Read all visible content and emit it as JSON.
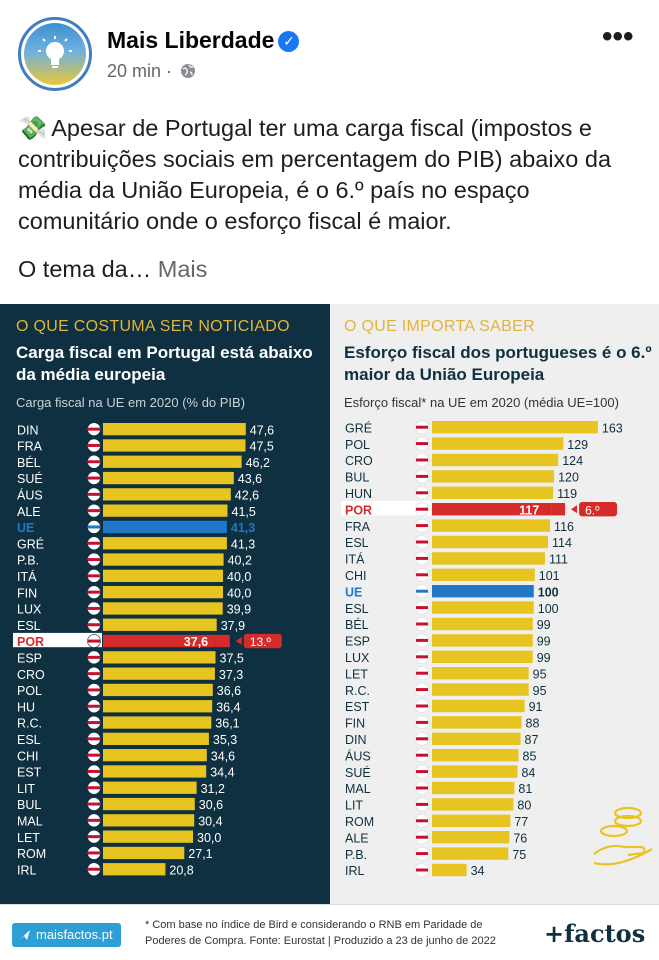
{
  "post": {
    "page_name": "Mais Liberdade",
    "time": "20 min ·",
    "text_emoji": "💸",
    "text": "Apesar de Portugal ter uma carga fiscal (impostos e contribuições sociais em percentagem do PIB) abaixo da média da União Europeia, é o 6.º país no espaço comunitário onde o esforço fiscal é maior.",
    "text_tail": "O tema da…",
    "more_label": "Mais"
  },
  "left_panel": {
    "kicker": "O QUE COSTUMA SER NOTICIADO",
    "headline": "Carga fiscal em Portugal está abaixo da média europeia",
    "subtitle": "Carga fiscal na UE em 2020 (% do PIB)"
  },
  "right_panel": {
    "kicker": "O QUE IMPORTA SABER",
    "headline": "Esforço fiscal dos portugueses é o 6.º maior da União Europeia",
    "subtitle": "Esforço fiscal* na UE em 2020 (média UE=100)"
  },
  "footer": {
    "site": "maisfactos.pt",
    "footnote_1": "* Com base no índice de Bird e considerando o RNB em Paridade de",
    "footnote_2": "Poderes de Compra. Fonte: Eurostat | Produzido a 23 de junho de 2022",
    "brand": "+factos"
  },
  "colors": {
    "bar": "#e8c420",
    "highlight": "#d62b2b",
    "eu": "#1f78c8",
    "dark_panel": "#0f3040",
    "kicker": "#e2b43a"
  },
  "chart_data": [
    {
      "type": "bar",
      "orientation": "horizontal",
      "title": "Carga fiscal em Portugal está abaixo da média europeia",
      "subtitle": "Carga fiscal na UE em 2020 (% do PIB)",
      "categories": [
        "DIN",
        "FRA",
        "BÉL",
        "SUÉ",
        "ÁUS",
        "ALE",
        "UE",
        "GRÉ",
        "P.B.",
        "ITÁ",
        "FIN",
        "LUX",
        "ESL",
        "POR",
        "ESP",
        "CRO",
        "POL",
        "HU",
        "R.C.",
        "ESL",
        "CHI",
        "EST",
        "LIT",
        "BUL",
        "MAL",
        "LET",
        "ROM",
        "IRL"
      ],
      "values": [
        47.6,
        47.5,
        46.2,
        43.6,
        42.6,
        41.5,
        41.3,
        41.3,
        40.2,
        40.0,
        40.0,
        39.9,
        37.9,
        37.6,
        37.5,
        37.3,
        36.6,
        36.4,
        36.1,
        35.3,
        34.6,
        34.4,
        31.2,
        30.6,
        30.4,
        30.0,
        27.1,
        20.8
      ],
      "labels": [
        "47,6",
        "47,5",
        "46,2",
        "43,6",
        "42,6",
        "41,5",
        "41,3",
        "41,3",
        "40,2",
        "40,0",
        "40,0",
        "39,9",
        "37,9",
        "37,6",
        "37,5",
        "37,3",
        "36,6",
        "36,4",
        "36,1",
        "35,3",
        "34,6",
        "34,4",
        "31,2",
        "30,6",
        "30,4",
        "30,0",
        "27,1",
        "20,8"
      ],
      "highlight": "POR",
      "eu_category": "UE",
      "rank_badge": "13.º",
      "xlim": [
        0,
        50
      ]
    },
    {
      "type": "bar",
      "orientation": "horizontal",
      "title": "Esforço fiscal dos portugueses é o 6.º maior da União Europeia",
      "subtitle": "Esforço fiscal* na UE em 2020 (média UE=100)",
      "categories": [
        "GRÉ",
        "POL",
        "CRO",
        "BUL",
        "HUN",
        "POR",
        "FRA",
        "ESL",
        "ITÁ",
        "CHI",
        "UE",
        "ESL",
        "BÉL",
        "ESP",
        "LUX",
        "LET",
        "R.C.",
        "EST",
        "FIN",
        "DIN",
        "ÁUS",
        "SUÉ",
        "MAL",
        "LIT",
        "ROM",
        "ALE",
        "P.B.",
        "IRL"
      ],
      "values": [
        163,
        129,
        124,
        120,
        119,
        117,
        116,
        114,
        111,
        101,
        100,
        100,
        99,
        99,
        99,
        95,
        95,
        91,
        88,
        87,
        85,
        84,
        81,
        80,
        77,
        76,
        75,
        34
      ],
      "labels": [
        "163",
        "129",
        "124",
        "120",
        "119",
        "117",
        "116",
        "114",
        "111",
        "101",
        "100",
        "100",
        "99",
        "99",
        "99",
        "95",
        "95",
        "91",
        "88",
        "87",
        "85",
        "84",
        "81",
        "80",
        "77",
        "76",
        "75",
        "34"
      ],
      "highlight": "POR",
      "eu_category": "UE",
      "rank_badge": "6.º",
      "xlim": [
        0,
        170
      ]
    }
  ]
}
